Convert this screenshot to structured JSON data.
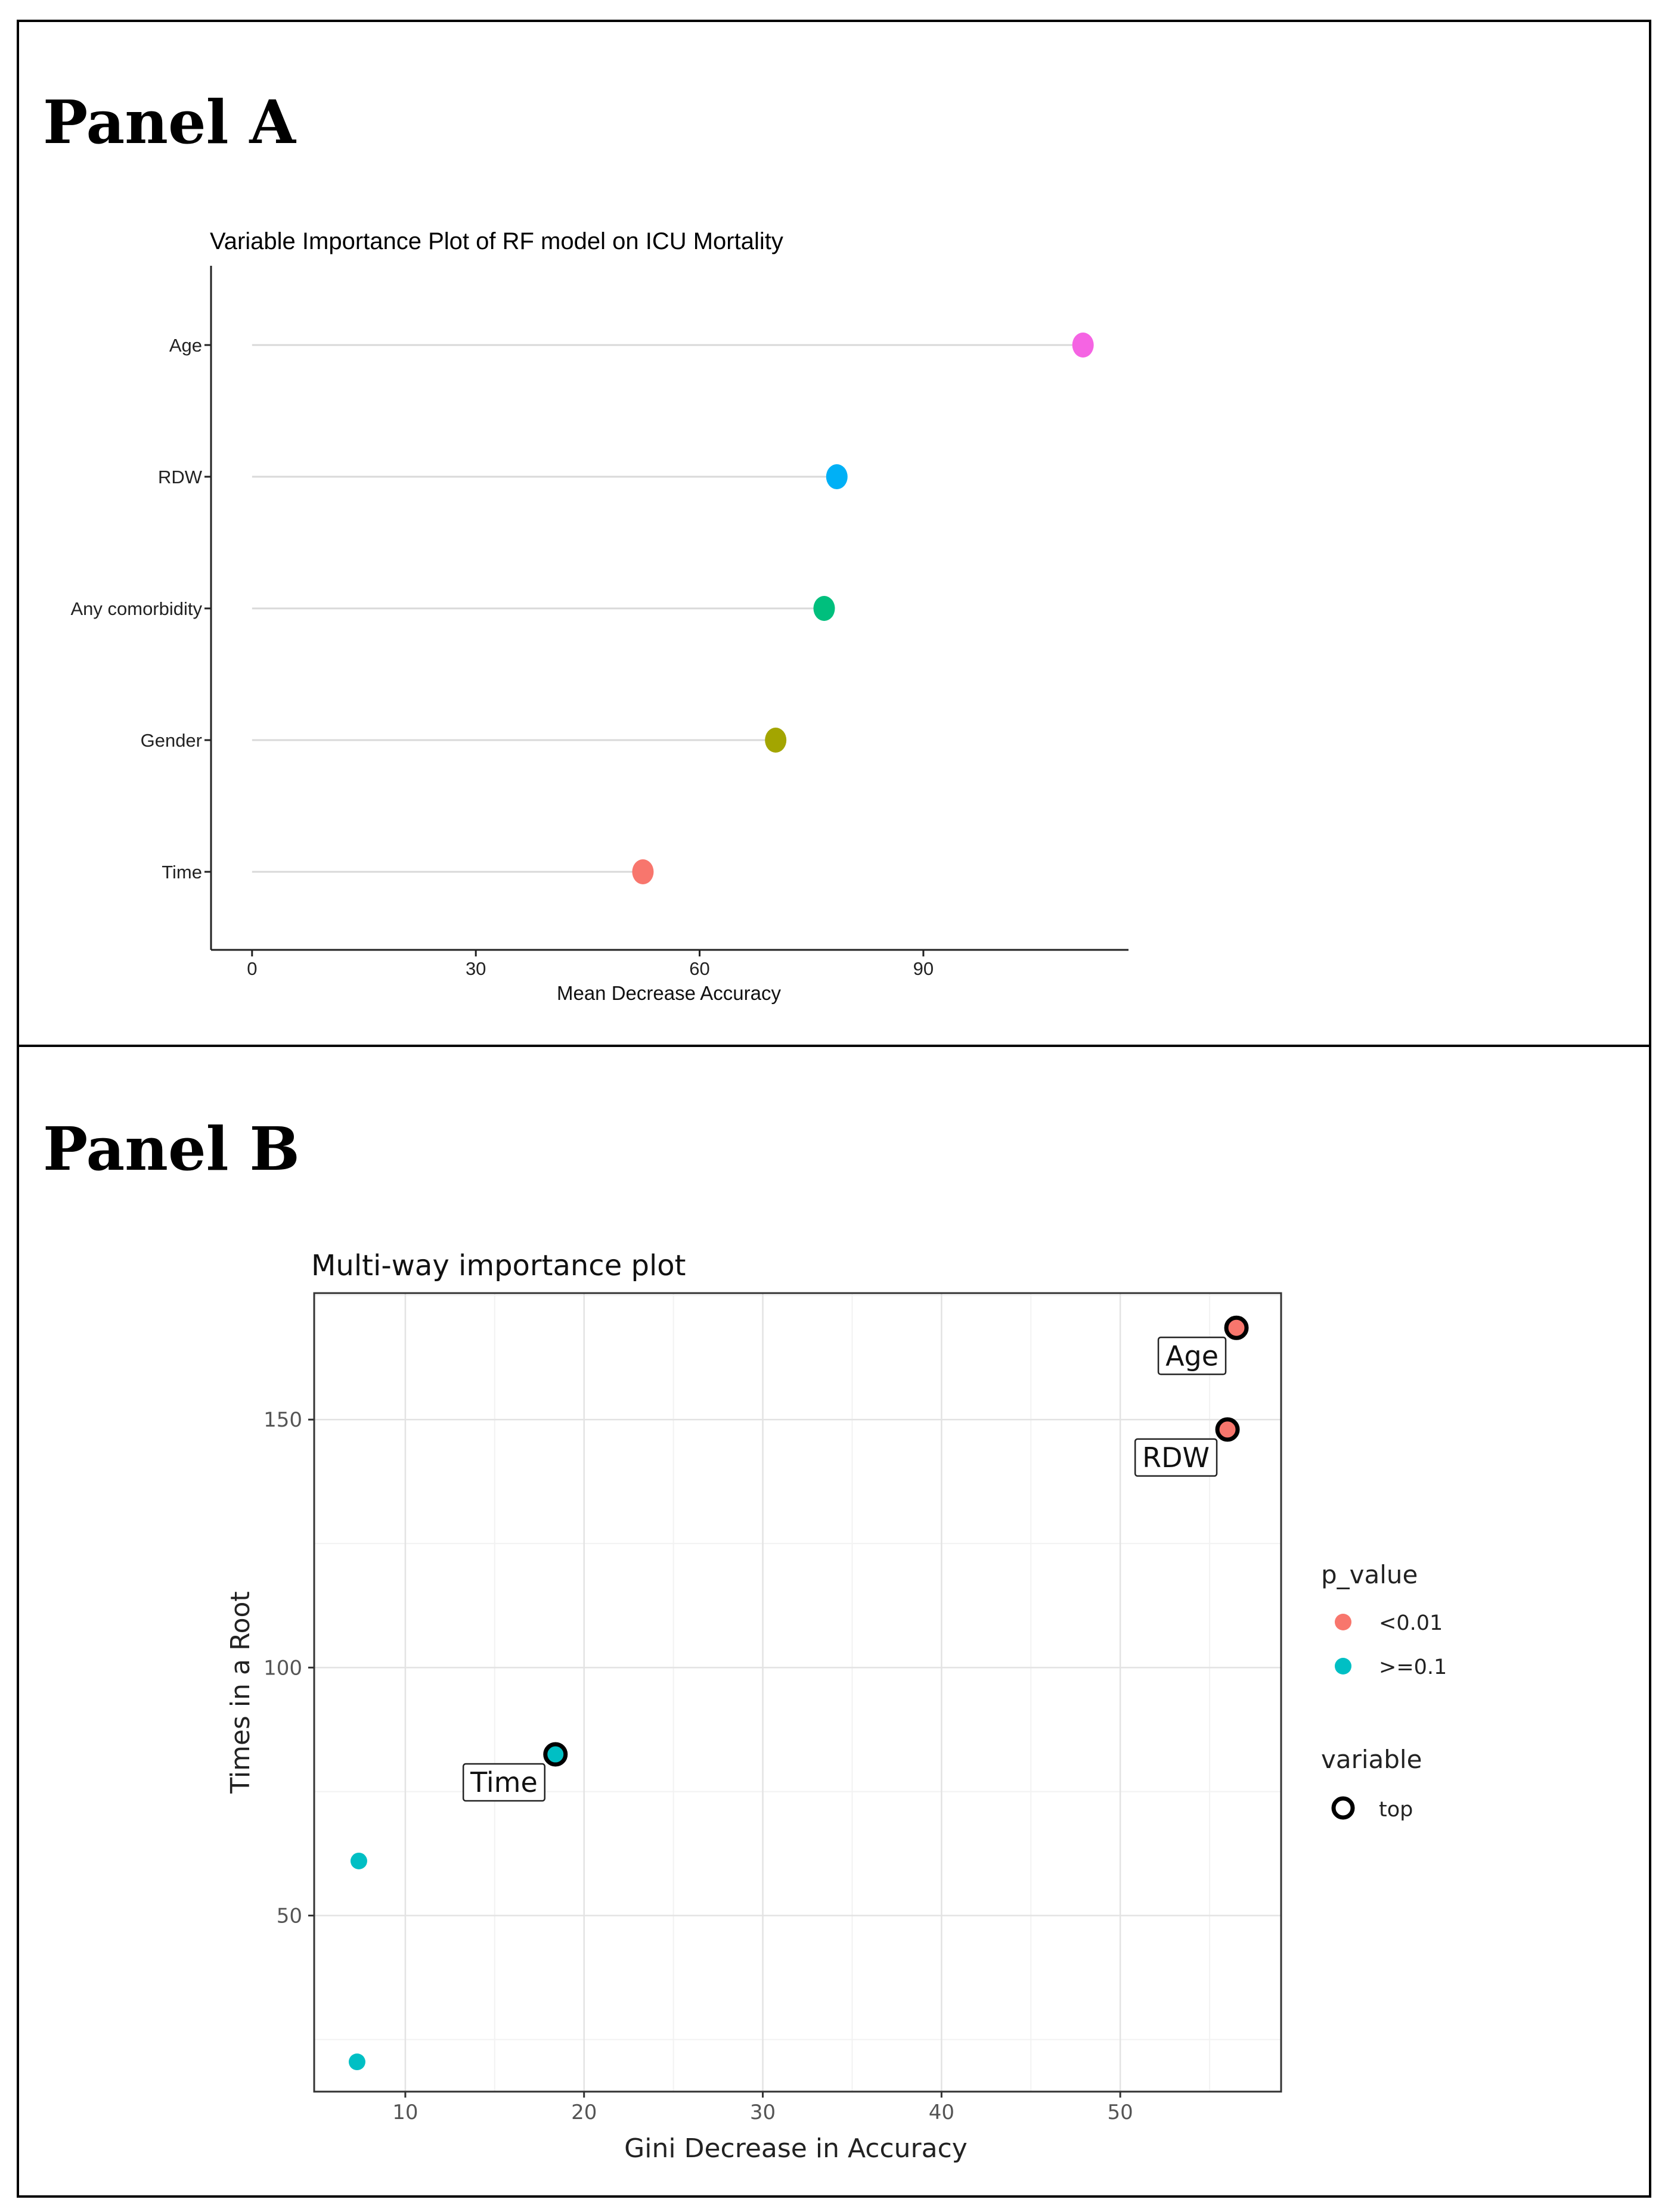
{
  "panels": {
    "a_label": "Panel A",
    "b_label": "Panel B"
  },
  "chart_data": [
    {
      "type": "scatter",
      "style": "lollipop",
      "title": "Variable Importance Plot of RF model on ICU Mortality",
      "xlabel": "Mean Decrease Accuracy",
      "ylabel": "",
      "xlim": [
        -5.5,
        117.5
      ],
      "x_ticks": [
        "0",
        "30",
        "60",
        "90"
      ],
      "grid": false,
      "points": [
        {
          "category": "Age",
          "value": 111.4,
          "color": "#f564e3"
        },
        {
          "category": "RDW",
          "value": 78.4,
          "color": "#00b0f6"
        },
        {
          "category": "Any comorbidity",
          "value": 76.7,
          "color": "#00bf7d"
        },
        {
          "category": "Gender",
          "value": 70.2,
          "color": "#a3a500"
        },
        {
          "category": "Time",
          "value": 52.4,
          "color": "#f8766d"
        }
      ]
    },
    {
      "type": "scatter",
      "title": "Multi-way importance plot",
      "xlabel": "Gini Decrease in Accuracy",
      "ylabel": "Times in a Root",
      "xlim": [
        4.9,
        59.0
      ],
      "ylim": [
        14.5,
        175.5
      ],
      "x_ticks": [
        "10",
        "20",
        "30",
        "40",
        "50"
      ],
      "y_ticks": [
        "50",
        "100",
        "150"
      ],
      "grid": true,
      "legend_position": "right",
      "legend": {
        "p_value_title": "p_value",
        "p_value_items": [
          {
            "label": "<0.01",
            "color": "#f8766d"
          },
          {
            "label": ">=0.1",
            "color": "#00bfc4"
          }
        ],
        "variable_title": "variable",
        "variable_items": [
          {
            "label": "top"
          }
        ]
      },
      "points": [
        {
          "label": "Age",
          "x": 56.5,
          "y": 168.5,
          "p_value": "<0.01",
          "top": true
        },
        {
          "label": "RDW",
          "x": 56.0,
          "y": 148.0,
          "p_value": "<0.01",
          "top": true
        },
        {
          "label": "Time",
          "x": 18.4,
          "y": 82.5,
          "p_value": ">=0.1",
          "top": true
        },
        {
          "label": "",
          "x": 7.4,
          "y": 61.0,
          "p_value": ">=0.1",
          "top": false
        },
        {
          "label": "",
          "x": 7.3,
          "y": 20.5,
          "p_value": ">=0.1",
          "top": false
        }
      ]
    }
  ]
}
